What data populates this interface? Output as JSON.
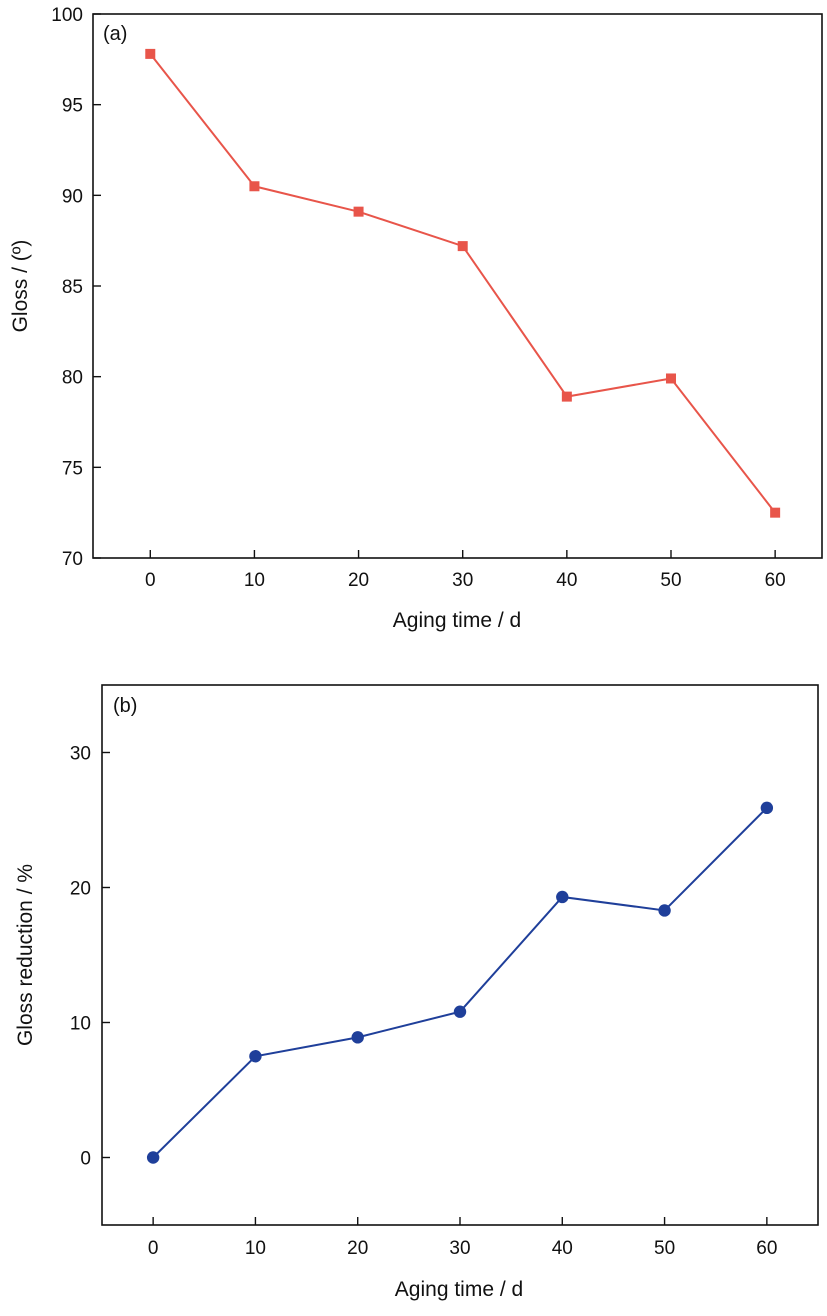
{
  "chart_data": [
    {
      "type": "line",
      "panel_label": "(a)",
      "xlabel": "Aging time / d",
      "ylabel": "Gloss / (º)",
      "x": [
        0,
        10,
        20,
        30,
        40,
        50,
        60
      ],
      "xticks": [
        "0",
        "10",
        "20",
        "30",
        "40",
        "50",
        "60"
      ],
      "yticks": [
        "70",
        "75",
        "80",
        "85",
        "90",
        "95",
        "100"
      ],
      "xlim": [
        -5.5,
        64.5
      ],
      "ylim": [
        70,
        100
      ],
      "series": [
        {
          "marker": "square",
          "color": "#e8554a",
          "values": [
            97.8,
            90.5,
            89.1,
            87.2,
            78.9,
            79.9,
            72.5
          ]
        }
      ],
      "grid": false
    },
    {
      "type": "line",
      "panel_label": "(b)",
      "xlabel": "Aging time / d",
      "ylabel": "Gloss reduction / %",
      "x": [
        0,
        10,
        20,
        30,
        40,
        50,
        60
      ],
      "xticks": [
        "0",
        "10",
        "20",
        "30",
        "40",
        "50",
        "60"
      ],
      "yticks": [
        "0",
        "10",
        "20",
        "30"
      ],
      "xlim": [
        -5,
        65
      ],
      "ylim": [
        -5,
        35
      ],
      "series": [
        {
          "marker": "circle",
          "color": "#1f3f9a",
          "values": [
            0,
            7.5,
            8.9,
            10.8,
            19.3,
            18.3,
            25.9
          ]
        }
      ],
      "grid": false
    }
  ]
}
